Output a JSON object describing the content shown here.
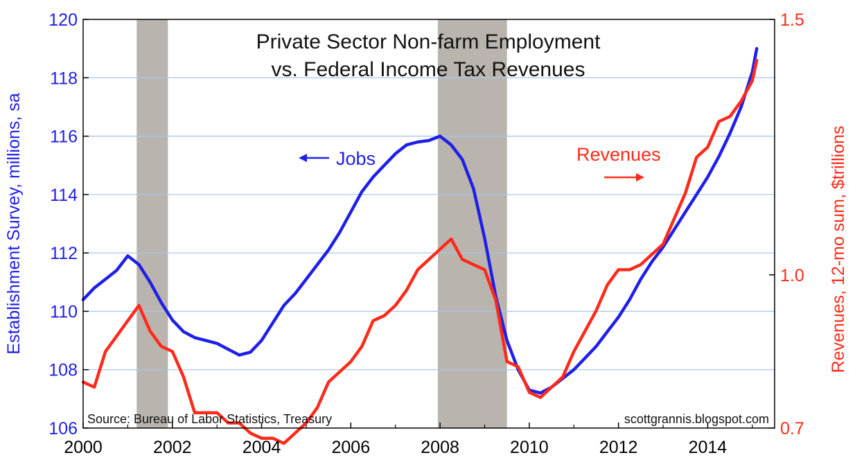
{
  "chart_data": {
    "type": "line",
    "title": "Private Sector Non-farm Employment",
    "subtitle": "vs. Federal Income Tax Revenues",
    "ylabel_left": "Establishment Survey, millions, sa",
    "ylabel_right": "Revenues, 12-mo sum, $trillions",
    "x_range": [
      2000,
      2015.5
    ],
    "x_ticks": [
      2000,
      2002,
      2004,
      2006,
      2008,
      2010,
      2012,
      2014
    ],
    "x_tick_labels": [
      "2000",
      "2002",
      "2004",
      "2006",
      "2008",
      "2010",
      "2012",
      "2014"
    ],
    "ylim_left": [
      106,
      120
    ],
    "y_ticks_left": [
      106,
      108,
      110,
      112,
      114,
      116,
      118,
      120
    ],
    "y_tick_labels_left": [
      "106",
      "108",
      "110",
      "112",
      "114",
      "116",
      "118",
      "120"
    ],
    "ylim_right": [
      0.7,
      1.5
    ],
    "y_ticks_right": [
      0.7,
      1.0,
      1.5
    ],
    "y_tick_labels_right": [
      "0.7",
      "1.0",
      "1.5"
    ],
    "grid": true,
    "recessions": [
      {
        "start": 2001.2,
        "end": 2001.9
      },
      {
        "start": 2007.95,
        "end": 2009.5
      }
    ],
    "annotations": {
      "jobs": "Jobs",
      "revenues": "Revenues",
      "source": "Source:  Bureau of Labor Statistics, Treasury",
      "credit": "scottgrannis.blogspot.com"
    },
    "series": [
      {
        "name": "Jobs",
        "axis": "left",
        "color": "#1f1fe8",
        "x": [
          2000.0,
          2000.25,
          2000.5,
          2000.75,
          2001.0,
          2001.25,
          2001.5,
          2001.75,
          2002.0,
          2002.25,
          2002.5,
          2002.75,
          2003.0,
          2003.25,
          2003.5,
          2003.75,
          2004.0,
          2004.25,
          2004.5,
          2004.75,
          2005.0,
          2005.25,
          2005.5,
          2005.75,
          2006.0,
          2006.25,
          2006.5,
          2006.75,
          2007.0,
          2007.25,
          2007.5,
          2007.75,
          2008.0,
          2008.25,
          2008.5,
          2008.75,
          2009.0,
          2009.25,
          2009.5,
          2009.75,
          2010.0,
          2010.25,
          2010.5,
          2010.75,
          2011.0,
          2011.25,
          2011.5,
          2011.75,
          2012.0,
          2012.25,
          2012.5,
          2012.75,
          2013.0,
          2013.25,
          2013.5,
          2013.75,
          2014.0,
          2014.25,
          2014.5,
          2014.75,
          2015.0,
          2015.1
        ],
        "values": [
          110.4,
          110.8,
          111.1,
          111.4,
          111.9,
          111.6,
          111.0,
          110.3,
          109.7,
          109.3,
          109.1,
          109.0,
          108.9,
          108.7,
          108.5,
          108.6,
          109.0,
          109.6,
          110.2,
          110.6,
          111.1,
          111.6,
          112.1,
          112.7,
          113.4,
          114.1,
          114.6,
          115.0,
          115.4,
          115.7,
          115.8,
          115.85,
          116.0,
          115.7,
          115.2,
          114.2,
          112.5,
          110.5,
          109.0,
          108.0,
          107.3,
          107.2,
          107.4,
          107.7,
          108.0,
          108.4,
          108.8,
          109.3,
          109.8,
          110.4,
          111.1,
          111.7,
          112.2,
          112.8,
          113.4,
          114.0,
          114.6,
          115.3,
          116.1,
          117.0,
          118.2,
          119.0
        ]
      },
      {
        "name": "Revenues",
        "axis": "right",
        "color": "#ff2a1a",
        "x": [
          2000.0,
          2000.25,
          2000.5,
          2000.75,
          2001.0,
          2001.25,
          2001.5,
          2001.75,
          2002.0,
          2002.25,
          2002.5,
          2002.75,
          2003.0,
          2003.25,
          2003.5,
          2003.75,
          2004.0,
          2004.25,
          2004.5,
          2004.75,
          2005.0,
          2005.25,
          2005.5,
          2005.75,
          2006.0,
          2006.25,
          2006.5,
          2006.75,
          2007.0,
          2007.25,
          2007.5,
          2007.75,
          2008.0,
          2008.25,
          2008.5,
          2008.75,
          2009.0,
          2009.25,
          2009.5,
          2009.75,
          2010.0,
          2010.25,
          2010.5,
          2010.75,
          2011.0,
          2011.25,
          2011.5,
          2011.75,
          2012.0,
          2012.25,
          2012.5,
          2012.75,
          2013.0,
          2013.25,
          2013.5,
          2013.75,
          2014.0,
          2014.25,
          2014.5,
          2014.75,
          2015.0,
          2015.1
        ],
        "values": [
          0.79,
          0.78,
          0.85,
          0.88,
          0.91,
          0.94,
          0.89,
          0.86,
          0.85,
          0.8,
          0.73,
          0.73,
          0.73,
          0.71,
          0.71,
          0.69,
          0.68,
          0.68,
          0.67,
          0.69,
          0.71,
          0.74,
          0.79,
          0.81,
          0.83,
          0.86,
          0.91,
          0.92,
          0.94,
          0.97,
          1.01,
          1.03,
          1.05,
          1.07,
          1.03,
          1.02,
          1.01,
          0.95,
          0.83,
          0.82,
          0.77,
          0.76,
          0.78,
          0.8,
          0.85,
          0.89,
          0.93,
          0.98,
          1.01,
          1.01,
          1.02,
          1.04,
          1.06,
          1.11,
          1.16,
          1.23,
          1.25,
          1.3,
          1.31,
          1.34,
          1.38,
          1.42
        ]
      }
    ]
  }
}
